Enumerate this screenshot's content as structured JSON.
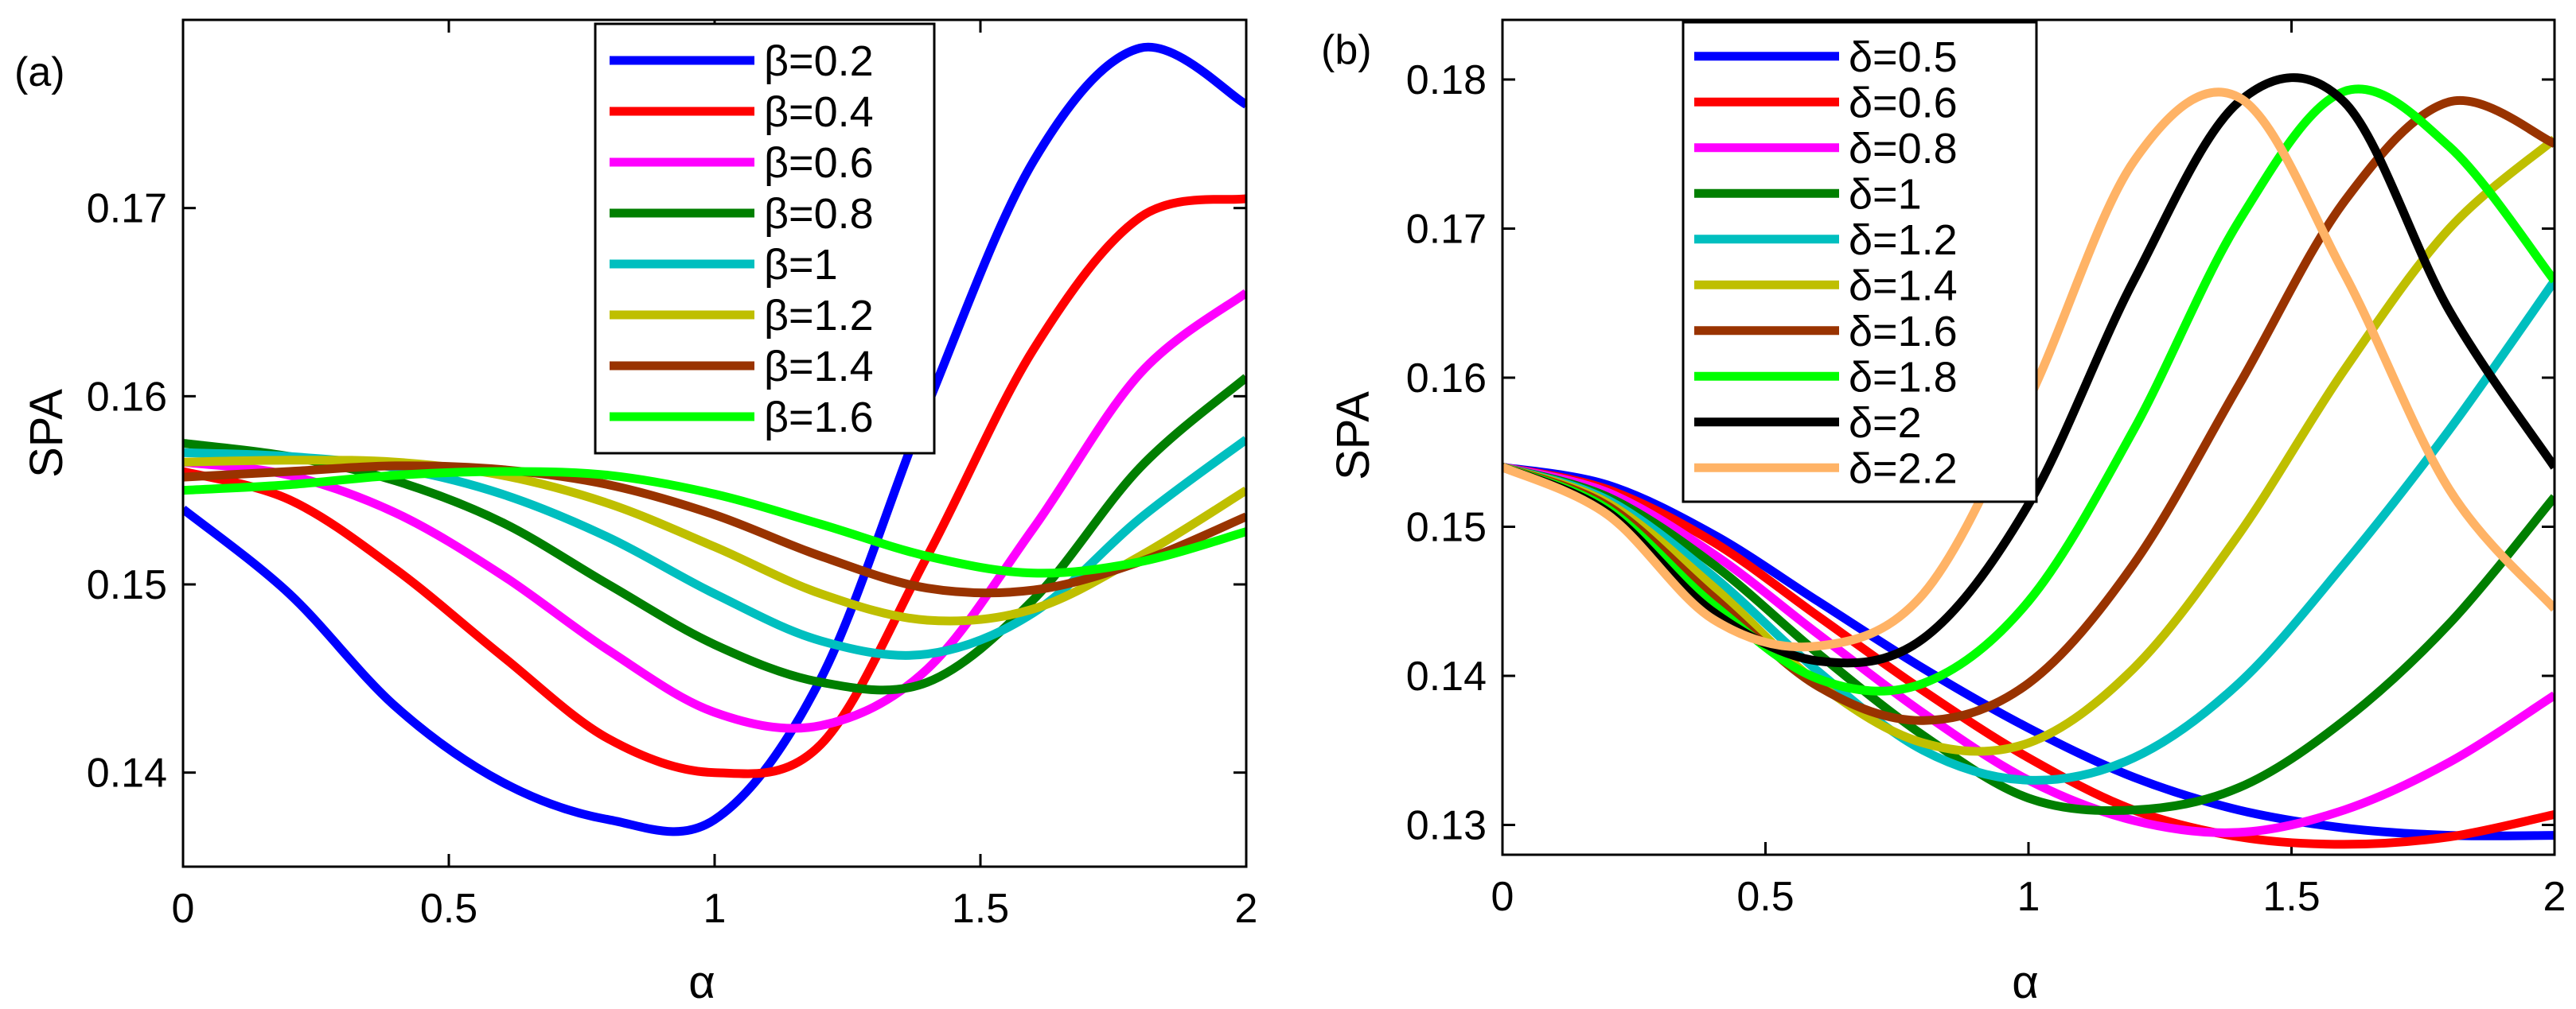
{
  "chart_data": [
    {
      "type": "line",
      "panel_label": "(a)",
      "xlabel": "α",
      "ylabel": "SPA",
      "xlim": [
        0,
        2
      ],
      "ylim": [
        0.135,
        0.18
      ],
      "xticks": [
        0,
        0.5,
        1,
        1.5,
        2
      ],
      "xtick_labels": [
        "0",
        "0.5",
        "1",
        "1.5",
        "2"
      ],
      "yticks": [
        0.14,
        0.15,
        0.16,
        0.17
      ],
      "ytick_labels": [
        "0.14",
        "0.15",
        "0.16",
        "0.17"
      ],
      "legend_position": "top-right",
      "grid": false,
      "x": [
        0,
        0.2,
        0.4,
        0.6,
        0.8,
        1.0,
        1.2,
        1.4,
        1.6,
        1.8,
        2.0
      ],
      "series": [
        {
          "name": "β=0.2",
          "color": "#0000ff",
          "values": [
            0.154,
            0.1495,
            0.1435,
            0.1395,
            0.1375,
            0.1375,
            0.145,
            0.1595,
            0.1725,
            0.1785,
            0.1755
          ]
        },
        {
          "name": "β=0.4",
          "color": "#ff0000",
          "values": [
            0.156,
            0.1545,
            0.1508,
            0.1462,
            0.1418,
            0.14,
            0.1415,
            0.1515,
            0.1625,
            0.1695,
            0.1705
          ]
        },
        {
          "name": "β=0.6",
          "color": "#ff00ff",
          "values": [
            0.1565,
            0.1558,
            0.1538,
            0.1505,
            0.1465,
            0.1432,
            0.1425,
            0.1455,
            0.153,
            0.1612,
            0.1655
          ]
        },
        {
          "name": "β=0.8",
          "color": "#007f00",
          "values": [
            0.1575,
            0.1568,
            0.1555,
            0.1533,
            0.15,
            0.1468,
            0.1448,
            0.1448,
            0.1492,
            0.1562,
            0.161
          ]
        },
        {
          "name": "β=1",
          "color": "#00bfbf",
          "values": [
            0.157,
            0.1568,
            0.1562,
            0.1548,
            0.1525,
            0.1495,
            0.147,
            0.1463,
            0.1485,
            0.1535,
            0.1577
          ]
        },
        {
          "name": "β=1.2",
          "color": "#bfbf00",
          "values": [
            0.1565,
            0.1566,
            0.1565,
            0.1558,
            0.1543,
            0.152,
            0.1495,
            0.1481,
            0.1487,
            0.1515,
            0.155
          ]
        },
        {
          "name": "β=1.4",
          "color": "#993300",
          "values": [
            0.1557,
            0.156,
            0.1563,
            0.1561,
            0.1553,
            0.1537,
            0.1515,
            0.1498,
            0.1497,
            0.1512,
            0.1536
          ]
        },
        {
          "name": "β=1.6",
          "color": "#00ff00",
          "values": [
            0.155,
            0.1553,
            0.1558,
            0.156,
            0.1558,
            0.1548,
            0.1532,
            0.1515,
            0.1506,
            0.1512,
            0.1528
          ]
        }
      ]
    },
    {
      "type": "line",
      "panel_label": "(b)",
      "xlabel": "α",
      "ylabel": "SPA",
      "xlim": [
        0,
        2
      ],
      "ylim": [
        0.128,
        0.184
      ],
      "xticks": [
        0,
        0.5,
        1,
        1.5,
        2
      ],
      "xtick_labels": [
        "0",
        "0.5",
        "1",
        "1.5",
        "2"
      ],
      "yticks": [
        0.13,
        0.14,
        0.15,
        0.16,
        0.17,
        0.18
      ],
      "ytick_labels": [
        "0.13",
        "0.14",
        "0.15",
        "0.16",
        "0.17",
        "0.18"
      ],
      "legend_position": "top-left",
      "grid": false,
      "x": [
        0,
        0.2,
        0.4,
        0.6,
        0.8,
        1.0,
        1.2,
        1.4,
        1.6,
        1.8,
        2.0
      ],
      "series": [
        {
          "name": "δ=0.5",
          "color": "#0000ff",
          "values": [
            0.154,
            0.1528,
            0.1495,
            0.145,
            0.1405,
            0.1365,
            0.1332,
            0.131,
            0.1298,
            0.1293,
            0.1293
          ]
        },
        {
          "name": "δ=0.6",
          "color": "#ff0000",
          "values": [
            0.154,
            0.1525,
            0.149,
            0.144,
            0.139,
            0.1345,
            0.131,
            0.1292,
            0.1287,
            0.1292,
            0.1307
          ]
        },
        {
          "name": "δ=0.8",
          "color": "#ff00ff",
          "values": [
            0.154,
            0.1523,
            0.1482,
            0.1428,
            0.1375,
            0.133,
            0.1303,
            0.1295,
            0.131,
            0.1342,
            0.1387
          ]
        },
        {
          "name": "δ=1",
          "color": "#007f00",
          "values": [
            0.154,
            0.152,
            0.1475,
            0.1415,
            0.136,
            0.1318,
            0.131,
            0.1325,
            0.137,
            0.1435,
            0.152
          ]
        },
        {
          "name": "δ=1.2",
          "color": "#00bfbf",
          "values": [
            0.154,
            0.1518,
            0.1467,
            0.1403,
            0.135,
            0.133,
            0.1345,
            0.1395,
            0.1475,
            0.1565,
            0.1665
          ]
        },
        {
          "name": "δ=1.4",
          "color": "#bfbf00",
          "values": [
            0.154,
            0.1516,
            0.146,
            0.1395,
            0.1355,
            0.1355,
            0.1405,
            0.1495,
            0.1605,
            0.17,
            0.176
          ]
        },
        {
          "name": "δ=1.6",
          "color": "#993300",
          "values": [
            0.154,
            0.1514,
            0.1453,
            0.1393,
            0.137,
            0.1395,
            0.1475,
            0.1595,
            0.1718,
            0.1785,
            0.1757
          ]
        },
        {
          "name": "δ=1.8",
          "color": "#00ff00",
          "values": [
            0.154,
            0.1512,
            0.1448,
            0.1398,
            0.1395,
            0.145,
            0.1565,
            0.1705,
            0.1792,
            0.1755,
            0.1665
          ]
        },
        {
          "name": "δ=2",
          "color": "#000000",
          "values": [
            0.154,
            0.151,
            0.1443,
            0.141,
            0.1425,
            0.1515,
            0.1665,
            0.1785,
            0.1785,
            0.1645,
            0.154
          ]
        },
        {
          "name": "δ=2.2",
          "color": "#ffb366",
          "values": [
            0.154,
            0.1508,
            0.1438,
            0.142,
            0.1455,
            0.1585,
            0.1745,
            0.1788,
            0.167,
            0.1525,
            0.1445
          ]
        }
      ]
    }
  ]
}
